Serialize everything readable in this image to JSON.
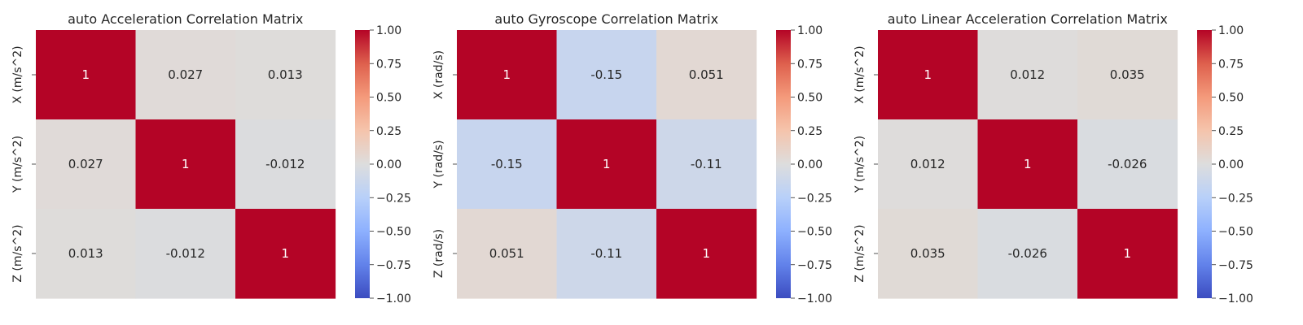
{
  "chart_data": [
    {
      "type": "heatmap",
      "title": "auto Acceleration Correlation Matrix",
      "row_labels": [
        "X (m/s^2)",
        "Y (m/s^2)",
        "Z (m/s^2)"
      ],
      "values": [
        [
          1,
          0.027,
          0.013
        ],
        [
          0.027,
          1,
          -0.012
        ],
        [
          0.013,
          -0.012,
          1
        ]
      ],
      "value_labels": [
        [
          "1",
          "0.027",
          "0.013"
        ],
        [
          "0.027",
          "1",
          "-0.012"
        ],
        [
          "0.013",
          "-0.012",
          "1"
        ]
      ],
      "colorbar": {
        "range": [
          -1.0,
          1.0
        ],
        "ticks": [
          "1.00",
          "0.75",
          "0.50",
          "0.25",
          "0.00",
          "−0.25",
          "−0.50",
          "−0.75",
          "−1.00"
        ],
        "colormap": "coolwarm"
      }
    },
    {
      "type": "heatmap",
      "title": "auto Gyroscope Correlation Matrix",
      "row_labels": [
        "X (rad/s)",
        "Y (rad/s)",
        "Z (rad/s)"
      ],
      "values": [
        [
          1,
          -0.15,
          0.051
        ],
        [
          -0.15,
          1,
          -0.11
        ],
        [
          0.051,
          -0.11,
          1
        ]
      ],
      "value_labels": [
        [
          "1",
          "-0.15",
          "0.051"
        ],
        [
          "-0.15",
          "1",
          "-0.11"
        ],
        [
          "0.051",
          "-0.11",
          "1"
        ]
      ],
      "colorbar": {
        "range": [
          -1.0,
          1.0
        ],
        "ticks": [
          "1.00",
          "0.75",
          "0.50",
          "0.25",
          "0.00",
          "−0.25",
          "−0.50",
          "−0.75",
          "−1.00"
        ],
        "colormap": "coolwarm"
      }
    },
    {
      "type": "heatmap",
      "title": "auto Linear Acceleration Correlation Matrix",
      "row_labels": [
        "X (m/s^2)",
        "Y (m/s^2)",
        "Z (m/s^2)"
      ],
      "values": [
        [
          1,
          0.012,
          0.035
        ],
        [
          0.012,
          1,
          -0.026
        ],
        [
          0.035,
          -0.026,
          1
        ]
      ],
      "value_labels": [
        [
          "1",
          "0.012",
          "0.035"
        ],
        [
          "0.012",
          "1",
          "-0.026"
        ],
        [
          "0.035",
          "-0.026",
          "1"
        ]
      ],
      "colorbar": {
        "range": [
          -1.0,
          1.0
        ],
        "ticks": [
          "1.00",
          "0.75",
          "0.50",
          "0.25",
          "0.00",
          "−0.25",
          "−0.50",
          "−0.75",
          "−1.00"
        ],
        "colormap": "coolwarm"
      }
    }
  ]
}
